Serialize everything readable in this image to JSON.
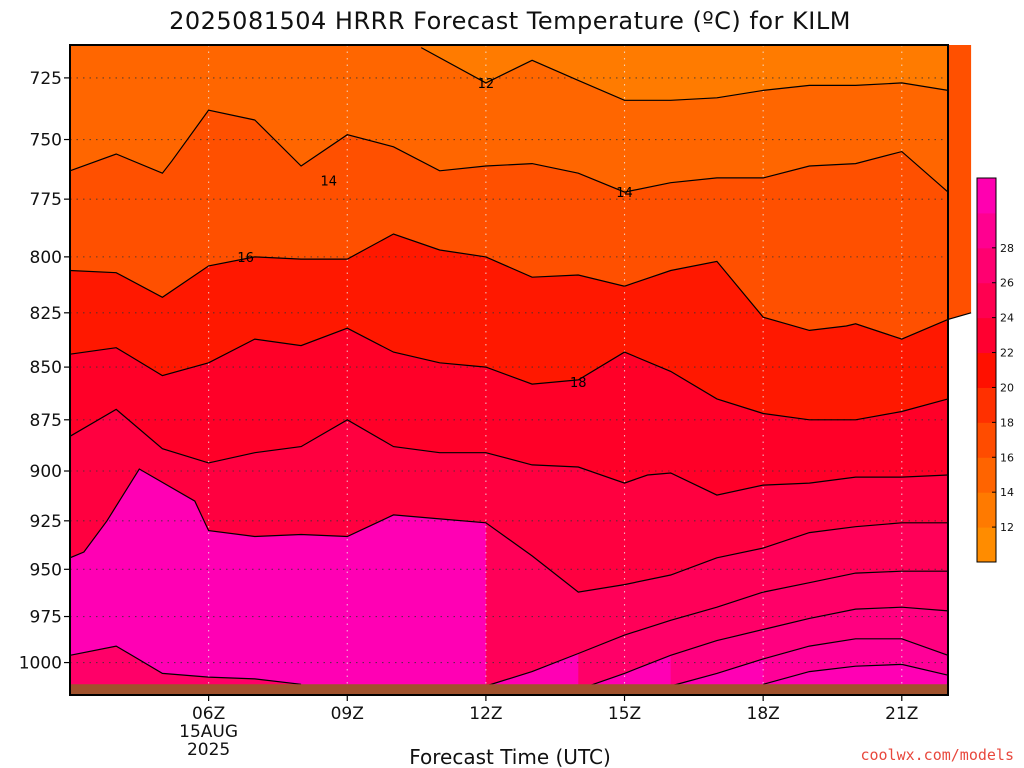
{
  "chart_data": {
    "type": "contour",
    "title": "2025081504 HRRR Forecast Temperature (ºC) for KILM",
    "xlabel": "Forecast Time (UTC)",
    "ylabel": "",
    "credit": "coolwx.com/models",
    "x_hours_range": [
      3,
      22
    ],
    "y_pressure_range_hPa": [
      1018,
      712
    ],
    "y_log_scale": true,
    "grid": "dotted",
    "x_ticks": [
      {
        "hour": 6,
        "label": "06Z",
        "sub1": "15AUG",
        "sub2": "2025"
      },
      {
        "hour": 9,
        "label": "09Z"
      },
      {
        "hour": 12,
        "label": "12Z"
      },
      {
        "hour": 15,
        "label": "15Z"
      },
      {
        "hour": 18,
        "label": "18Z"
      },
      {
        "hour": 21,
        "label": "21Z"
      }
    ],
    "y_ticks": [
      725,
      750,
      775,
      800,
      825,
      850,
      875,
      900,
      925,
      950,
      975,
      1000
    ],
    "ground_pressure_hPa": 1012,
    "colorbar": {
      "ticks": [
        12,
        14,
        16,
        18,
        20,
        22,
        24,
        26,
        28
      ],
      "band_colors": [
        "#ff8c00",
        "#ff7a00",
        "#ff6400",
        "#ff4c00",
        "#ff3000",
        "#ff1000",
        "#ff0030",
        "#ff0050",
        "#ff0070",
        "#ff0090",
        "#ff00b0"
      ]
    },
    "fill_colors": {
      "below_12": "#ff8c00",
      "12_14": "#ff7b00",
      "14_16": "#ff6600",
      "16_17": "#ff5000",
      "17_18": "#ff3a00",
      "18_20": "#ff1800",
      "20_21": "#ff0028",
      "21_22": "#ff0040",
      "22_23": "#ff0058",
      "23_24": "#ff0068",
      "24_25": "#ff0080",
      "25_26": "#ff0098",
      "above_26": "#ff00b4"
    },
    "ground_color": "#a0522d",
    "contours": [
      {
        "temp": 12,
        "label": "12",
        "label_at": [
          12,
          727
        ],
        "points": [
          [
            10.6,
            713
          ],
          [
            12,
            727
          ],
          [
            13,
            718
          ],
          [
            14,
            726
          ],
          [
            15,
            734
          ],
          [
            16,
            734
          ],
          [
            17,
            733
          ],
          [
            18,
            730
          ],
          [
            19,
            728
          ],
          [
            20,
            728
          ],
          [
            21,
            727
          ],
          [
            22,
            730
          ]
        ]
      },
      {
        "temp": 14,
        "label": "14",
        "label_at": [
          15,
          772
        ],
        "points": [
          [
            3,
            763
          ],
          [
            4,
            756
          ],
          [
            5,
            764
          ],
          [
            5.2,
            759
          ],
          [
            6,
            738
          ],
          [
            7,
            742
          ],
          [
            8,
            761
          ],
          [
            9,
            748
          ],
          [
            10,
            753
          ],
          [
            11,
            763
          ],
          [
            12,
            761
          ],
          [
            13,
            760
          ],
          [
            14,
            764
          ],
          [
            15,
            772
          ],
          [
            16,
            768
          ],
          [
            17,
            766
          ],
          [
            18,
            766
          ],
          [
            19,
            761
          ],
          [
            20,
            760
          ],
          [
            21,
            755
          ],
          [
            22,
            772
          ]
        ]
      },
      {
        "temp": 14,
        "label": "14",
        "label_at": [
          8.6,
          767
        ],
        "points": []
      },
      {
        "temp": 16,
        "label": "16",
        "label_at": [
          6.8,
          800
        ],
        "points": [
          [
            3,
            806
          ],
          [
            4,
            807
          ],
          [
            5,
            818
          ],
          [
            6,
            804
          ],
          [
            7,
            800
          ],
          [
            8,
            801
          ],
          [
            9,
            801
          ],
          [
            10,
            790
          ],
          [
            11,
            797
          ],
          [
            12,
            800
          ],
          [
            13,
            809
          ],
          [
            14,
            808
          ],
          [
            15,
            813
          ],
          [
            16,
            806
          ],
          [
            17,
            802
          ],
          [
            18,
            827
          ],
          [
            19,
            833
          ],
          [
            19.8,
            831
          ],
          [
            20,
            830
          ],
          [
            21,
            837
          ],
          [
            22,
            828
          ],
          [
            22.5,
            825
          ]
        ]
      },
      {
        "temp": 18,
        "label": "18",
        "label_at": [
          14,
          857
        ],
        "points": [
          [
            3,
            844
          ],
          [
            4,
            841
          ],
          [
            5,
            854
          ],
          [
            6,
            848
          ],
          [
            7,
            837
          ],
          [
            8,
            840
          ],
          [
            9,
            832
          ],
          [
            10,
            843
          ],
          [
            11,
            848
          ],
          [
            12,
            850
          ],
          [
            13,
            858
          ],
          [
            14,
            856
          ],
          [
            15,
            843
          ],
          [
            16,
            852
          ],
          [
            17,
            865
          ],
          [
            18,
            872
          ],
          [
            19,
            875
          ],
          [
            20,
            875
          ],
          [
            21,
            871
          ],
          [
            22,
            865
          ]
        ]
      },
      {
        "temp": 19.5,
        "points": [
          [
            3,
            883
          ],
          [
            4,
            870
          ],
          [
            5,
            889
          ],
          [
            6,
            896
          ],
          [
            7,
            891
          ],
          [
            8,
            888
          ],
          [
            9,
            875
          ],
          [
            10,
            888
          ],
          [
            11,
            891
          ],
          [
            12,
            891
          ],
          [
            13,
            897
          ],
          [
            14,
            898
          ],
          [
            15,
            906
          ],
          [
            15.5,
            902
          ],
          [
            16,
            901
          ],
          [
            17,
            912
          ],
          [
            18,
            907
          ],
          [
            19,
            906
          ],
          [
            20,
            903
          ],
          [
            21,
            903
          ],
          [
            22,
            902
          ]
        ]
      },
      {
        "temp": 21,
        "points": [
          [
            3,
            944
          ],
          [
            3.3,
            941
          ],
          [
            3.8,
            925
          ],
          [
            4.5,
            899
          ],
          [
            5.7,
            915
          ],
          [
            6,
            930
          ],
          [
            7,
            933
          ],
          [
            8,
            932
          ],
          [
            9,
            933
          ],
          [
            10,
            922
          ],
          [
            11,
            924
          ],
          [
            12,
            926
          ],
          [
            13,
            943
          ],
          [
            14,
            962
          ],
          [
            15,
            958
          ],
          [
            16,
            953
          ],
          [
            17,
            944
          ],
          [
            18,
            939
          ],
          [
            19,
            931
          ],
          [
            20,
            928
          ],
          [
            21,
            926
          ],
          [
            22,
            926
          ]
        ]
      },
      {
        "temp": 22,
        "points": [
          [
            12,
            1013
          ],
          [
            13,
            1005
          ],
          [
            14,
            995
          ],
          [
            15,
            985
          ],
          [
            16,
            977
          ],
          [
            17,
            970
          ],
          [
            18,
            962
          ],
          [
            19,
            957
          ],
          [
            20,
            952
          ],
          [
            21,
            951
          ],
          [
            22,
            951
          ]
        ]
      },
      {
        "temp": 23,
        "points": [
          [
            3,
            996
          ],
          [
            4,
            991
          ],
          [
            5,
            1006
          ],
          [
            6,
            1008
          ],
          [
            7,
            1009
          ],
          [
            8,
            1012
          ]
        ]
      },
      {
        "temp": 23.5,
        "points": [
          [
            14,
            1015
          ],
          [
            15,
            1006
          ],
          [
            16,
            996
          ],
          [
            17,
            988
          ],
          [
            18,
            982
          ],
          [
            19,
            976
          ],
          [
            20,
            971
          ],
          [
            21,
            970
          ],
          [
            22,
            972
          ]
        ]
      },
      {
        "temp": 24.5,
        "points": [
          [
            16,
            1013
          ],
          [
            17,
            1006
          ],
          [
            18,
            998
          ],
          [
            19,
            991
          ],
          [
            20,
            987
          ],
          [
            21,
            987
          ],
          [
            22,
            996
          ]
        ]
      },
      {
        "temp": 25.5,
        "points": [
          [
            18,
            1012
          ],
          [
            19,
            1005
          ],
          [
            20,
            1002
          ],
          [
            21,
            1001
          ],
          [
            22,
            1007
          ]
        ]
      }
    ]
  }
}
